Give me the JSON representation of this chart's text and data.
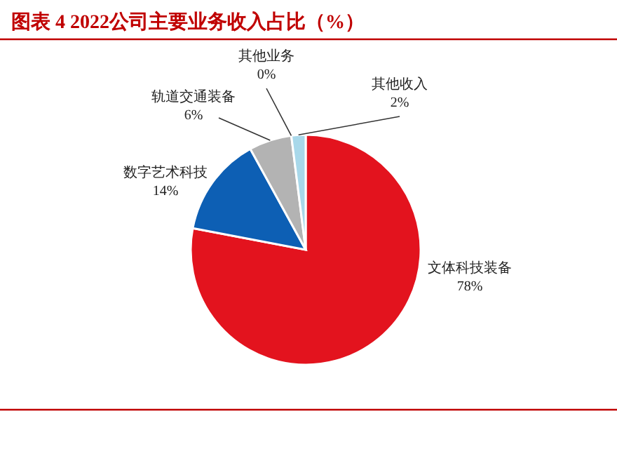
{
  "chart_data": {
    "type": "pie",
    "title": "图表 4   2022公司主要业务收入占比（%）",
    "categories": [
      "文体科技装备",
      "数字艺术科技",
      "轨道交通装备",
      "其他业务",
      "其他收入"
    ],
    "values": [
      78,
      14,
      6,
      0,
      2
    ],
    "colors": [
      "#e3131e",
      "#0d5fb4",
      "#b3b3b3",
      null,
      "#a8d8ea"
    ],
    "value_labels": [
      "78%",
      "14%",
      "6%",
      "0%",
      "2%"
    ]
  }
}
